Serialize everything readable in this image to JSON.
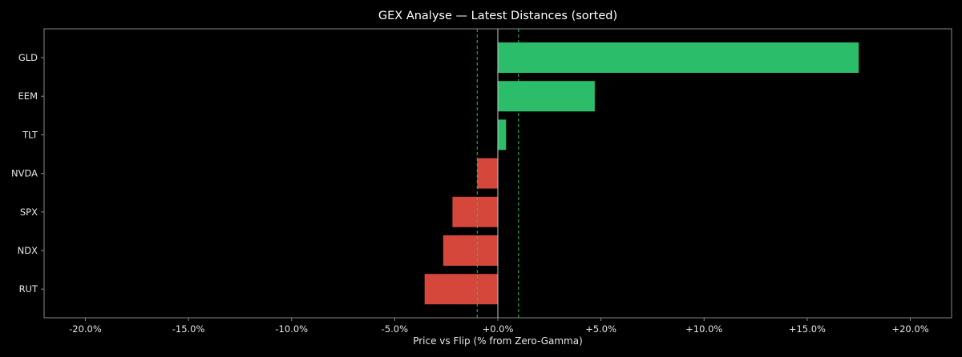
{
  "chart_data": {
    "type": "bar",
    "orientation": "horizontal",
    "title": "GEX Analyse — Latest Distances (sorted)",
    "xlabel": "Price vs Flip (% from Zero-Gamma)",
    "ylabel": "",
    "categories": [
      "GLD",
      "EEM",
      "TLT",
      "NVDA",
      "SPX",
      "NDX",
      "RUT"
    ],
    "values": [
      17.5,
      4.7,
      0.4,
      -1.0,
      -2.2,
      -2.65,
      -3.55
    ],
    "xlim": [
      -22,
      22
    ],
    "xticks": [
      -20,
      -15,
      -10,
      -5,
      0,
      5,
      10,
      15,
      20
    ],
    "xtick_labels": [
      "-20.0%",
      "-15.0%",
      "-10.0%",
      "-5.0%",
      "+0.0%",
      "+5.0%",
      "+10.0%",
      "+15.0%",
      "+20.0%"
    ],
    "zero_line": 0,
    "threshold_lines": [
      -1.0,
      1.0
    ],
    "grid": false,
    "colors": {
      "positive": "#2bbd6a",
      "negative": "#d5473b",
      "threshold": "#2bbd6a",
      "zero_line": "#cccccc",
      "frame": "#888888",
      "background": "#000000",
      "text": "#e6e6e6"
    }
  }
}
